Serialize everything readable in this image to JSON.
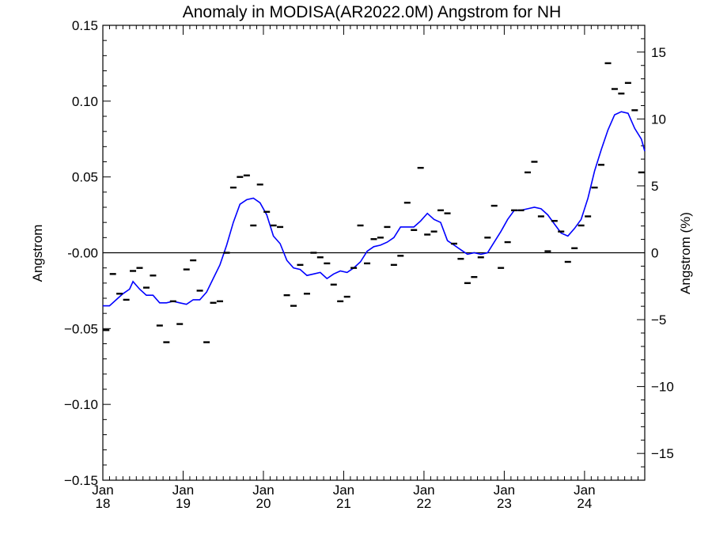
{
  "chart_data": {
    "type": "line",
    "title": "Anomaly in MODISA(AR2022.0M) Angstrom for NH",
    "ylabel_left": "Angstrom",
    "ylabel_right": "Angstrom (%)",
    "xlim": [
      2018.0,
      2024.75
    ],
    "ylim_left": [
      -0.15,
      0.15
    ],
    "ylim_right": [
      -17,
      17
    ],
    "yticks_left": [
      {
        "value": 0.15,
        "label": "0.15"
      },
      {
        "value": 0.1,
        "label": "0.10"
      },
      {
        "value": 0.05,
        "label": "0.05"
      },
      {
        "value": 0.0,
        "label": "-0.00"
      },
      {
        "value": -0.05,
        "label": "−0.05"
      },
      {
        "value": -0.1,
        "label": "−0.10"
      },
      {
        "value": -0.15,
        "label": "−0.15"
      }
    ],
    "yticks_right": [
      {
        "value": 15,
        "label": "15"
      },
      {
        "value": 10,
        "label": "10"
      },
      {
        "value": 5,
        "label": "5"
      },
      {
        "value": 0,
        "label": "0"
      },
      {
        "value": -5,
        "label": "−5"
      },
      {
        "value": -10,
        "label": "−10"
      },
      {
        "value": -15,
        "label": "−15"
      }
    ],
    "xticks": [
      {
        "value": 2018,
        "month": "Jan",
        "year": "18"
      },
      {
        "value": 2019,
        "month": "Jan",
        "year": "19"
      },
      {
        "value": 2020,
        "month": "Jan",
        "year": "20"
      },
      {
        "value": 2021,
        "month": "Jan",
        "year": "21"
      },
      {
        "value": 2022,
        "month": "Jan",
        "year": "22"
      },
      {
        "value": 2023,
        "month": "Jan",
        "year": "23"
      },
      {
        "value": 2024,
        "month": "Jan",
        "year": "24"
      }
    ],
    "zero_line": 0,
    "line_color": "#0000ff",
    "marker_color": "#000000",
    "monthly_anomaly": [
      [
        2018.042,
        -0.051
      ],
      [
        2018.125,
        -0.014
      ],
      [
        2018.208,
        -0.027
      ],
      [
        2018.292,
        -0.031
      ],
      [
        2018.375,
        -0.012
      ],
      [
        2018.458,
        -0.01
      ],
      [
        2018.542,
        -0.023
      ],
      [
        2018.625,
        -0.015
      ],
      [
        2018.708,
        -0.048
      ],
      [
        2018.792,
        -0.059
      ],
      [
        2018.875,
        -0.032
      ],
      [
        2018.958,
        -0.047
      ],
      [
        2019.042,
        -0.011
      ],
      [
        2019.125,
        -0.005
      ],
      [
        2019.208,
        -0.025
      ],
      [
        2019.292,
        -0.059
      ],
      [
        2019.375,
        -0.033
      ],
      [
        2019.458,
        -0.032
      ],
      [
        2019.542,
        0.0
      ],
      [
        2019.625,
        0.043
      ],
      [
        2019.708,
        0.05
      ],
      [
        2019.792,
        0.051
      ],
      [
        2019.875,
        0.018
      ],
      [
        2019.958,
        0.045
      ],
      [
        2020.042,
        0.027
      ],
      [
        2020.125,
        0.018
      ],
      [
        2020.208,
        0.017
      ],
      [
        2020.292,
        -0.028
      ],
      [
        2020.375,
        -0.035
      ],
      [
        2020.458,
        -0.008
      ],
      [
        2020.542,
        -0.027
      ],
      [
        2020.625,
        0.0
      ],
      [
        2020.708,
        -0.003
      ],
      [
        2020.792,
        -0.007
      ],
      [
        2020.875,
        -0.021
      ],
      [
        2020.958,
        -0.032
      ],
      [
        2021.042,
        -0.029
      ],
      [
        2021.125,
        -0.01
      ],
      [
        2021.208,
        0.018
      ],
      [
        2021.292,
        -0.007
      ],
      [
        2021.375,
        0.009
      ],
      [
        2021.458,
        0.01
      ],
      [
        2021.542,
        0.017
      ],
      [
        2021.625,
        -0.008
      ],
      [
        2021.708,
        -0.002
      ],
      [
        2021.792,
        0.033
      ],
      [
        2021.875,
        0.015
      ],
      [
        2021.958,
        0.056
      ],
      [
        2022.042,
        0.012
      ],
      [
        2022.125,
        0.014
      ],
      [
        2022.208,
        0.028
      ],
      [
        2022.292,
        0.026
      ],
      [
        2022.375,
        0.006
      ],
      [
        2022.458,
        -0.004
      ],
      [
        2022.542,
        -0.02
      ],
      [
        2022.625,
        -0.016
      ],
      [
        2022.708,
        -0.003
      ],
      [
        2022.792,
        0.01
      ],
      [
        2022.875,
        0.031
      ],
      [
        2022.958,
        -0.01
      ],
      [
        2023.042,
        0.007
      ],
      [
        2023.125,
        0.028
      ],
      [
        2023.208,
        0.028
      ],
      [
        2023.292,
        0.053
      ],
      [
        2023.375,
        0.06
      ],
      [
        2023.458,
        0.024
      ],
      [
        2023.542,
        0.001
      ],
      [
        2023.625,
        0.021
      ],
      [
        2023.708,
        0.014
      ],
      [
        2023.792,
        -0.006
      ],
      [
        2023.875,
        0.003
      ],
      [
        2023.958,
        0.018
      ],
      [
        2024.042,
        0.024
      ],
      [
        2024.125,
        0.043
      ],
      [
        2024.208,
        0.058
      ],
      [
        2024.292,
        0.125
      ],
      [
        2024.375,
        0.108
      ],
      [
        2024.458,
        0.105
      ],
      [
        2024.542,
        0.112
      ],
      [
        2024.625,
        0.094
      ],
      [
        2024.708,
        0.053
      ]
    ],
    "smoothed": [
      [
        2018.0,
        -0.035
      ],
      [
        2018.083,
        -0.035
      ],
      [
        2018.167,
        -0.031
      ],
      [
        2018.25,
        -0.027
      ],
      [
        2018.333,
        -0.024
      ],
      [
        2018.375,
        -0.019
      ],
      [
        2018.458,
        -0.024
      ],
      [
        2018.542,
        -0.028
      ],
      [
        2018.625,
        -0.028
      ],
      [
        2018.708,
        -0.033
      ],
      [
        2018.792,
        -0.033
      ],
      [
        2018.875,
        -0.032
      ],
      [
        2018.958,
        -0.033
      ],
      [
        2019.042,
        -0.034
      ],
      [
        2019.125,
        -0.031
      ],
      [
        2019.208,
        -0.031
      ],
      [
        2019.292,
        -0.026
      ],
      [
        2019.375,
        -0.017
      ],
      [
        2019.458,
        -0.008
      ],
      [
        2019.542,
        0.005
      ],
      [
        2019.625,
        0.02
      ],
      [
        2019.708,
        0.032
      ],
      [
        2019.792,
        0.035
      ],
      [
        2019.875,
        0.036
      ],
      [
        2019.958,
        0.033
      ],
      [
        2020.042,
        0.025
      ],
      [
        2020.125,
        0.011
      ],
      [
        2020.208,
        0.006
      ],
      [
        2020.292,
        -0.005
      ],
      [
        2020.375,
        -0.01
      ],
      [
        2020.458,
        -0.011
      ],
      [
        2020.542,
        -0.015
      ],
      [
        2020.625,
        -0.014
      ],
      [
        2020.708,
        -0.013
      ],
      [
        2020.792,
        -0.017
      ],
      [
        2020.875,
        -0.014
      ],
      [
        2020.958,
        -0.012
      ],
      [
        2021.042,
        -0.013
      ],
      [
        2021.125,
        -0.01
      ],
      [
        2021.208,
        -0.006
      ],
      [
        2021.292,
        0.001
      ],
      [
        2021.375,
        0.004
      ],
      [
        2021.458,
        0.005
      ],
      [
        2021.542,
        0.007
      ],
      [
        2021.625,
        0.01
      ],
      [
        2021.708,
        0.017
      ],
      [
        2021.792,
        0.017
      ],
      [
        2021.875,
        0.017
      ],
      [
        2021.958,
        0.021
      ],
      [
        2022.042,
        0.026
      ],
      [
        2022.125,
        0.022
      ],
      [
        2022.208,
        0.02
      ],
      [
        2022.292,
        0.008
      ],
      [
        2022.375,
        0.005
      ],
      [
        2022.458,
        0.002
      ],
      [
        2022.542,
        -0.001
      ],
      [
        2022.625,
        0.0
      ],
      [
        2022.708,
        -0.001
      ],
      [
        2022.792,
        0.0
      ],
      [
        2022.875,
        0.007
      ],
      [
        2022.958,
        0.014
      ],
      [
        2023.042,
        0.022
      ],
      [
        2023.125,
        0.028
      ],
      [
        2023.208,
        0.028
      ],
      [
        2023.292,
        0.029
      ],
      [
        2023.375,
        0.03
      ],
      [
        2023.458,
        0.029
      ],
      [
        2023.542,
        0.025
      ],
      [
        2023.625,
        0.019
      ],
      [
        2023.708,
        0.013
      ],
      [
        2023.792,
        0.011
      ],
      [
        2023.875,
        0.016
      ],
      [
        2023.958,
        0.022
      ],
      [
        2024.042,
        0.036
      ],
      [
        2024.125,
        0.054
      ],
      [
        2024.208,
        0.068
      ],
      [
        2024.292,
        0.081
      ],
      [
        2024.375,
        0.091
      ],
      [
        2024.458,
        0.093
      ],
      [
        2024.542,
        0.092
      ],
      [
        2024.625,
        0.082
      ],
      [
        2024.708,
        0.075
      ],
      [
        2024.75,
        0.067
      ]
    ]
  }
}
